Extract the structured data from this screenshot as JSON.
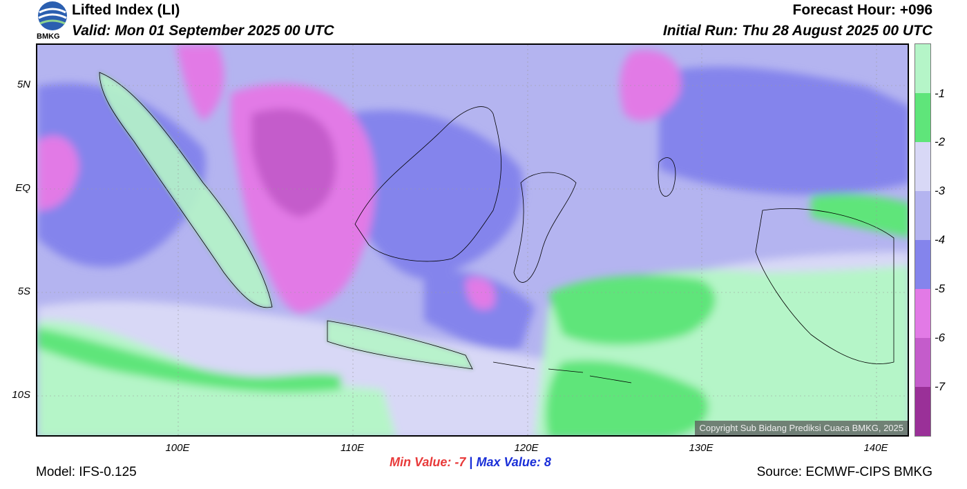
{
  "header": {
    "title": "Lifted Index (LI)",
    "valid": "Valid: Mon 01 September 2025 00 UTC",
    "forecast_hour": "Forecast Hour: +096",
    "initial_run": "Initial Run: Thu 28 August 2025 00 UTC",
    "logo_text": "BMKG"
  },
  "map": {
    "lat_labels": [
      "5N",
      "EQ",
      "5S",
      "10S"
    ],
    "lon_labels": [
      "100E",
      "110E",
      "120E",
      "130E",
      "140E"
    ],
    "copyright": "Copyright Sub Bidang Prediksi Cuaca BMKG, 2025"
  },
  "colorbar": {
    "ticks": [
      "-1",
      "-2",
      "-3",
      "-4",
      "-5",
      "-6",
      "-7"
    ],
    "colors": [
      "#b5f5c8",
      "#5fe57a",
      "#d8d8f6",
      "#b4b4f0",
      "#8484ec",
      "#e27ae6",
      "#c45ccb",
      "#9a3098"
    ]
  },
  "stats": {
    "min_label": "Min Value:",
    "min_value": "-7",
    "separator": "|",
    "max_label": "Max Value:",
    "max_value": "8"
  },
  "footer": {
    "model": "Model: IFS-0.125",
    "source": "Source: ECMWF-CIPS BMKG"
  }
}
